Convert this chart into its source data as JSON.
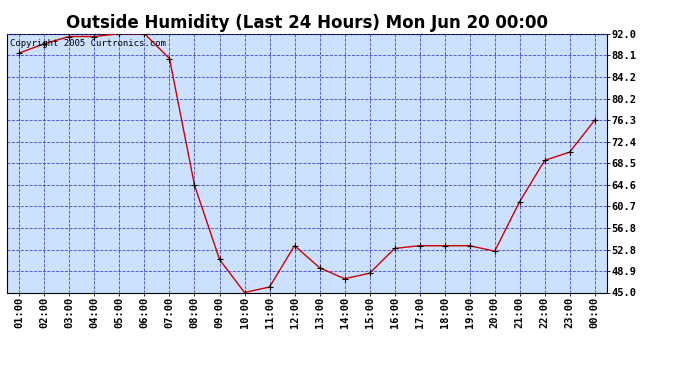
{
  "title": "Outside Humidity (Last 24 Hours) Mon Jun 20 00:00",
  "copyright": "Copyright 2005 Curtronics.com",
  "x_labels": [
    "01:00",
    "02:00",
    "03:00",
    "04:00",
    "05:00",
    "06:00",
    "07:00",
    "08:00",
    "09:00",
    "10:00",
    "11:00",
    "12:00",
    "13:00",
    "14:00",
    "15:00",
    "16:00",
    "17:00",
    "18:00",
    "19:00",
    "20:00",
    "21:00",
    "22:00",
    "23:00",
    "00:00"
  ],
  "y_values": [
    88.5,
    90.2,
    91.5,
    91.5,
    92.0,
    92.0,
    87.5,
    64.5,
    51.0,
    45.0,
    46.0,
    53.5,
    49.5,
    47.5,
    48.5,
    53.0,
    53.5,
    53.5,
    53.5,
    52.5,
    61.5,
    69.0,
    70.5,
    76.3
  ],
  "ylim_min": 45.0,
  "ylim_max": 92.0,
  "yticks": [
    45.0,
    48.9,
    52.8,
    56.8,
    60.7,
    64.6,
    68.5,
    72.4,
    76.3,
    80.2,
    84.2,
    88.1,
    92.0
  ],
  "line_color": "#cc0000",
  "marker_color": "#000000",
  "plot_bg_color": "#cce0ff",
  "outer_bg_color": "#ffffff",
  "grid_color": "#3333cc",
  "title_fontsize": 12,
  "tick_fontsize": 7.5,
  "copyright_fontsize": 6.5
}
